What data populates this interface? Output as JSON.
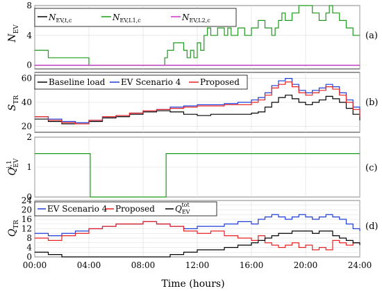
{
  "chart_data": [
    {
      "type": "line",
      "panel_label": "(a)",
      "ylabel": "N_EV",
      "ylim": [
        -0.5,
        8
      ],
      "yticks": [
        0,
        4,
        8
      ],
      "grid": true,
      "legend_position": "top-left",
      "x_unit_note": "x values are hours of day",
      "series": [
        {
          "name": "N_EV,t,c",
          "color": "#000000",
          "x": [
            0,
            24
          ],
          "y": [
            0,
            0
          ]
        },
        {
          "name": "N_EV,L1,c",
          "color": "#1a9a1a",
          "x": [
            0,
            1,
            4.0,
            9.6,
            9.8,
            10.0,
            10.25,
            10.5,
            11.0,
            11.25,
            11.5,
            11.75,
            12.0,
            12.25,
            12.5,
            12.75,
            13.0,
            13.25,
            13.5,
            14.0,
            14.25,
            14.5,
            15.0,
            15.5,
            16.0,
            16.5,
            17.0,
            17.5,
            17.75,
            18.0,
            18.25,
            18.5,
            19.0,
            19.5,
            20.0,
            20.5,
            21.0,
            21.5,
            21.75,
            22.0,
            22.5,
            23.0,
            23.25,
            23.5,
            24.0
          ],
          "y": [
            2,
            1,
            0,
            1,
            2,
            2,
            3,
            3,
            2,
            1,
            2,
            1,
            3,
            2,
            4,
            5,
            4,
            4,
            5,
            4,
            5,
            4,
            5,
            4,
            5,
            6,
            5,
            4,
            5,
            6,
            7,
            6,
            7,
            8,
            8,
            7,
            6,
            7,
            8,
            7,
            6,
            5,
            5,
            4,
            4
          ]
        },
        {
          "name": "N_EV,L2,c",
          "color": "#cc33cc",
          "x": [
            0,
            24
          ],
          "y": [
            0,
            0
          ]
        }
      ],
      "step": true
    },
    {
      "type": "line",
      "panel_label": "(b)",
      "ylabel": "S_TR",
      "ylim": [
        15,
        65
      ],
      "yticks": [
        20,
        40,
        60
      ],
      "grid": true,
      "legend_position": "top",
      "step": true,
      "x": [
        0,
        1,
        2,
        3,
        4,
        5,
        6,
        7,
        8,
        9,
        10,
        11,
        12,
        13,
        14,
        15,
        16,
        16.5,
        17,
        17.5,
        18,
        18.5,
        19,
        19.5,
        20,
        20.5,
        21,
        21.5,
        22,
        22.5,
        23,
        23.5,
        24
      ],
      "series": [
        {
          "name": "Baseline load",
          "color": "#000000",
          "y": [
            26,
            24,
            22,
            22,
            24,
            27,
            28,
            30,
            32,
            33,
            32,
            30,
            29,
            30,
            30,
            30,
            31,
            32,
            36,
            40,
            44,
            46,
            43,
            40,
            38,
            40,
            42,
            45,
            43,
            40,
            35,
            30,
            25
          ]
        },
        {
          "name": "EV Scenario 4",
          "color": "#1f3bd6",
          "y": [
            28,
            26,
            24,
            23,
            25,
            28,
            29,
            31,
            33,
            34,
            36,
            37,
            38,
            38,
            39,
            40,
            42,
            44,
            48,
            54,
            58,
            60,
            55,
            50,
            48,
            50,
            52,
            55,
            53,
            48,
            42,
            36,
            30
          ]
        },
        {
          "name": "Proposed",
          "color": "#e82020",
          "y": [
            28,
            25,
            23,
            22,
            25,
            28,
            29,
            31,
            33,
            34,
            35,
            36,
            37,
            37,
            38,
            38,
            40,
            42,
            46,
            52,
            55,
            57,
            53,
            48,
            46,
            48,
            50,
            53,
            51,
            46,
            40,
            34,
            28
          ]
        }
      ]
    },
    {
      "type": "line",
      "panel_label": "(c)",
      "ylabel": "Q_EV^i,1",
      "ylim": [
        0,
        2
      ],
      "yticks": [
        0,
        1,
        2
      ],
      "grid": true,
      "step": true,
      "series": [
        {
          "name": "",
          "color": "#1a9a1a",
          "x": [
            0,
            4.1,
            9.7,
            24
          ],
          "y": [
            1.45,
            0,
            1.45,
            1.45
          ]
        }
      ]
    },
    {
      "type": "line",
      "panel_label": "(d)",
      "ylabel": "Q_TR",
      "ylim": [
        0,
        24
      ],
      "yticks": [
        0,
        2,
        4,
        6,
        8,
        10,
        12,
        14,
        16,
        18,
        20,
        22,
        24
      ],
      "ytick_labels_shown": [
        0,
        4,
        8,
        12,
        16,
        20,
        24
      ],
      "grid": true,
      "legend_position": "top",
      "step": true,
      "x": [
        0,
        1,
        2,
        3,
        4,
        5,
        6,
        7,
        8,
        9,
        10,
        11,
        12,
        13,
        14,
        15,
        16,
        16.5,
        17,
        17.5,
        18,
        18.5,
        19,
        19.5,
        20,
        20.5,
        21,
        21.5,
        22,
        22.5,
        23,
        23.5,
        24
      ],
      "series": [
        {
          "name": "EV Scenario 4",
          "color": "#1f3bd6",
          "y": [
            10,
            9,
            10,
            11,
            12,
            13,
            14,
            14,
            15,
            14,
            13,
            12,
            13,
            13,
            14,
            15,
            14,
            16,
            17,
            18,
            17,
            16,
            17,
            18,
            17,
            16,
            17,
            18,
            17,
            16,
            14,
            12,
            11
          ]
        },
        {
          "name": "Proposed",
          "color": "#e82020",
          "y": [
            8,
            7,
            9,
            10,
            12,
            13,
            14,
            14,
            15,
            14,
            13,
            11,
            10,
            11,
            9,
            8,
            7,
            9,
            6,
            5,
            4,
            5,
            6,
            4,
            5,
            3,
            4,
            3,
            7,
            6,
            5,
            6,
            6
          ]
        },
        {
          "name": "Q_EV^tot",
          "color": "#000000",
          "y": [
            2,
            1,
            0,
            0,
            0,
            0,
            0,
            0,
            0,
            0,
            1,
            2,
            3,
            3,
            4,
            5,
            6,
            7,
            8,
            9,
            10,
            10,
            11,
            11,
            11,
            10,
            11,
            11,
            9,
            8,
            7,
            6,
            5
          ]
        }
      ]
    }
  ],
  "x_axis": {
    "label": "Time (hours)",
    "tick_labels": [
      "00:00",
      "04:00",
      "08:00",
      "12:00",
      "16:00",
      "20:00",
      "24:00"
    ],
    "ticks": [
      0,
      4,
      8,
      12,
      16,
      20,
      24
    ],
    "xlim": [
      0,
      24
    ]
  },
  "legend_labels": {
    "a": [
      "N",
      "EV,t,c",
      "N",
      "EV,L1,c",
      "N",
      "EV,L2,c"
    ],
    "b": [
      "Baseline load",
      "EV Scenario 4",
      "Proposed"
    ],
    "d": [
      "EV Scenario 4",
      "Proposed",
      "Q",
      "EV",
      "tot"
    ]
  },
  "ylabels": {
    "a_main": "N",
    "a_sub": "EV",
    "b_main": "S",
    "b_sub": "TR",
    "c_main": "Q",
    "c_sub": "EV",
    "c_sup": "i,1",
    "d_main": "Q",
    "d_sub": "TR"
  },
  "panel_labels": [
    "(a)",
    "(b)",
    "(c)",
    "(d)"
  ]
}
